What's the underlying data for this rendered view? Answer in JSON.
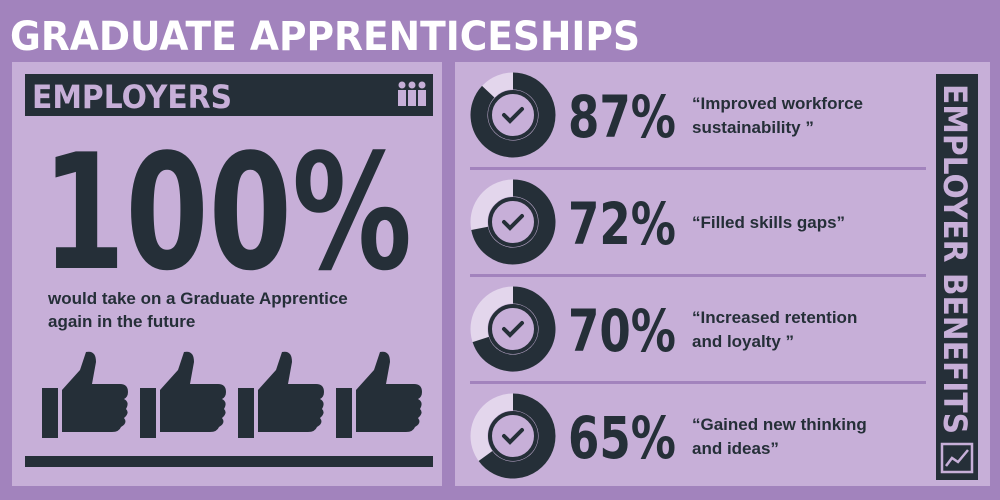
{
  "title": "GRADUATE APPRENTICESHIPS",
  "employers": {
    "heading": "EMPLOYERS",
    "stat": "100%",
    "caption": [
      "would take on a Graduate Apprentice",
      "again in the future"
    ]
  },
  "benefits": {
    "heading": "EMPLOYER BENEFITS",
    "items": [
      {
        "value": 87,
        "label": "87%",
        "quote": [
          "“Improved workforce",
          "sustainability ”"
        ]
      },
      {
        "value": 72,
        "label": "72%",
        "quote": [
          "“Filled skills gaps”"
        ]
      },
      {
        "value": 70,
        "label": "70%",
        "quote": [
          "“Increased retention",
          "and loyalty ”"
        ]
      },
      {
        "value": 65,
        "label": "65%",
        "quote": [
          "“Gained new thinking",
          "and ideas”"
        ]
      }
    ]
  }
}
